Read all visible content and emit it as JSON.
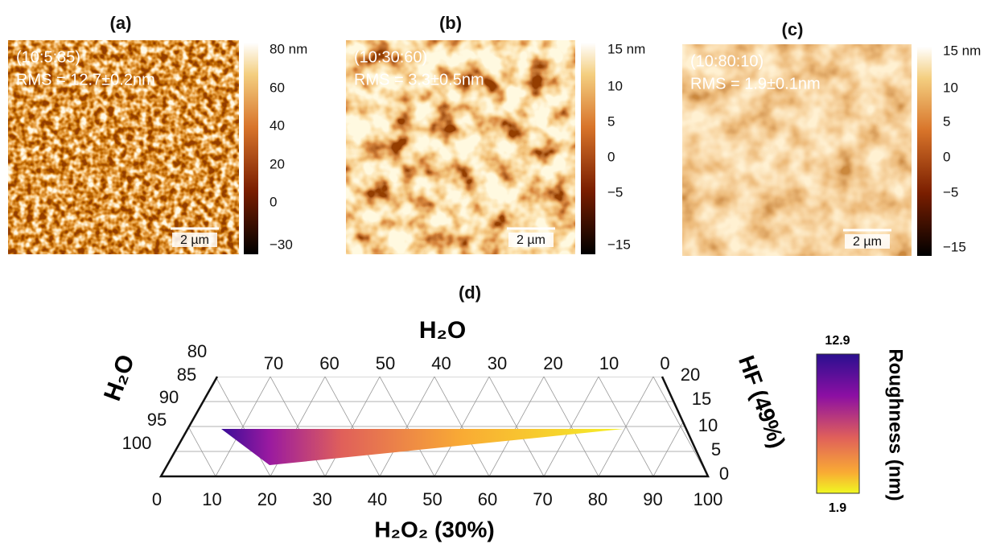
{
  "panels": [
    {
      "label": "(a)",
      "composition": "(10:5:85)",
      "rms": "RMS = 12.7±0.2nm",
      "scale_bar": "2 µm",
      "colorbar_ticks": [
        "80 nm",
        "60",
        "40",
        "20",
        "0",
        "−30"
      ]
    },
    {
      "label": "(b)",
      "composition": "(10:30:60)",
      "rms": "RMS = 3.3±0.5nm",
      "scale_bar": "2 µm",
      "colorbar_ticks": [
        "15 nm",
        "10",
        "5",
        "0",
        "−5",
        "−15"
      ]
    },
    {
      "label": "(c)",
      "composition": "(10:80:10)",
      "rms": "RMS = 1.9±0.1nm",
      "scale_bar": "2 µm",
      "colorbar_ticks": [
        "15 nm",
        "10",
        "5",
        "0",
        "−5",
        "−15"
      ]
    }
  ],
  "ternary": {
    "label": "(d)",
    "top_axis_title": "H₂O",
    "top_ticks": [
      70,
      60,
      50,
      40,
      30,
      20,
      10,
      0
    ],
    "left_axis_title": "H₂O",
    "left_ticks": [
      80,
      85,
      90,
      95,
      100
    ],
    "right_axis_title": "HF (49%)",
    "right_ticks": [
      20,
      15,
      10,
      5,
      0
    ],
    "bottom_axis_title": "H₂O₂ (30%)",
    "bottom_ticks": [
      0,
      10,
      20,
      30,
      40,
      50,
      60,
      70,
      80,
      90,
      100
    ],
    "colorbar_title": "Roughness (nm)",
    "colorbar_max": "12.9",
    "colorbar_min": "1.9"
  }
}
